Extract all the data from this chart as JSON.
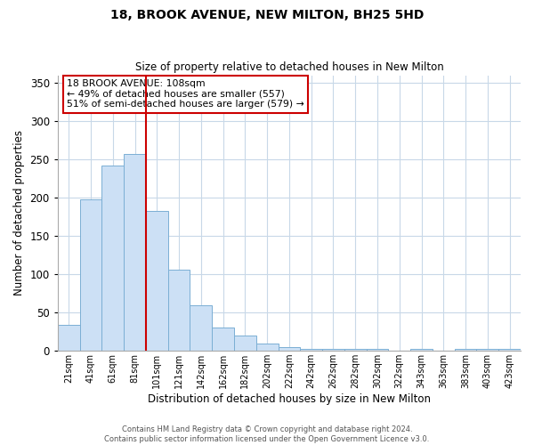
{
  "title": "18, BROOK AVENUE, NEW MILTON, BH25 5HD",
  "subtitle": "Size of property relative to detached houses in New Milton",
  "xlabel": "Distribution of detached houses by size in New Milton",
  "ylabel": "Number of detached properties",
  "categories": [
    "21sqm",
    "41sqm",
    "61sqm",
    "81sqm",
    "101sqm",
    "121sqm",
    "142sqm",
    "162sqm",
    "182sqm",
    "202sqm",
    "222sqm",
    "242sqm",
    "262sqm",
    "282sqm",
    "302sqm",
    "322sqm",
    "343sqm",
    "363sqm",
    "383sqm",
    "403sqm",
    "423sqm"
  ],
  "values": [
    34,
    198,
    242,
    257,
    183,
    106,
    60,
    30,
    20,
    10,
    5,
    2,
    2,
    2,
    2,
    0,
    2,
    0,
    2,
    2,
    2
  ],
  "bar_color": "#cce0f5",
  "bar_edge_color": "#7bafd4",
  "marker_line_color": "#cc0000",
  "marker_after_index": 3,
  "ylim": [
    0,
    360
  ],
  "yticks": [
    0,
    50,
    100,
    150,
    200,
    250,
    300,
    350
  ],
  "annotation_title": "18 BROOK AVENUE: 108sqm",
  "annotation_line1": "← 49% of detached houses are smaller (557)",
  "annotation_line2": "51% of semi-detached houses are larger (579) →",
  "annotation_box_color": "#ffffff",
  "annotation_box_edge_color": "#cc0000",
  "footer_line1": "Contains HM Land Registry data © Crown copyright and database right 2024.",
  "footer_line2": "Contains public sector information licensed under the Open Government Licence v3.0.",
  "background_color": "#ffffff",
  "grid_color": "#c8d8e8"
}
